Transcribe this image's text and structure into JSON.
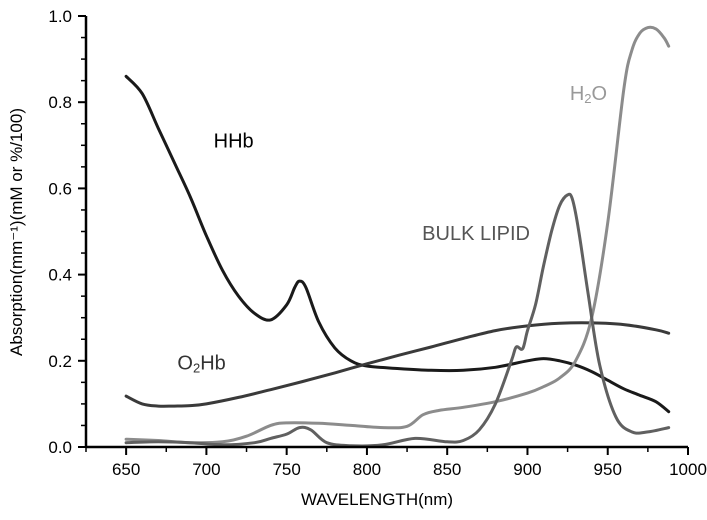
{
  "chart_data": {
    "type": "line",
    "xlabel": "WAVELENGTH(nm)",
    "ylabel": "Absorption(mm⁻¹)(mM or %/100)",
    "xlim": [
      625,
      1000
    ],
    "ylim": [
      0,
      1.0
    ],
    "x_ticks": [
      "650",
      "700",
      "750",
      "800",
      "850",
      "900",
      "950",
      "1000"
    ],
    "y_ticks": [
      "0.0",
      "0.2",
      "0.4",
      "0.6",
      "0.8",
      "1.0"
    ],
    "grid": false,
    "series": [
      {
        "name": "HHb",
        "color": "#1a1a1a",
        "x": [
          650,
          660,
          670,
          680,
          690,
          700,
          710,
          720,
          730,
          740,
          750,
          755,
          758,
          762,
          770,
          780,
          790,
          800,
          820,
          840,
          860,
          880,
          900,
          910,
          920,
          930,
          940,
          950,
          960,
          970,
          980,
          988
        ],
        "y": [
          0.86,
          0.82,
          0.74,
          0.66,
          0.58,
          0.49,
          0.41,
          0.35,
          0.31,
          0.295,
          0.33,
          0.37,
          0.385,
          0.37,
          0.29,
          0.23,
          0.2,
          0.188,
          0.182,
          0.178,
          0.178,
          0.185,
          0.2,
          0.205,
          0.2,
          0.19,
          0.175,
          0.155,
          0.135,
          0.12,
          0.105,
          0.082
        ]
      },
      {
        "name": "O₂Hb",
        "color": "#3a3a3a",
        "x": [
          650,
          660,
          670,
          680,
          690,
          700,
          720,
          740,
          760,
          780,
          800,
          820,
          840,
          860,
          880,
          900,
          920,
          940,
          960,
          980,
          988
        ],
        "y": [
          0.118,
          0.1,
          0.095,
          0.095,
          0.096,
          0.1,
          0.115,
          0.133,
          0.152,
          0.172,
          0.193,
          0.213,
          0.232,
          0.252,
          0.27,
          0.281,
          0.287,
          0.288,
          0.284,
          0.272,
          0.264
        ]
      },
      {
        "name": "H₂O",
        "color": "#8c8c8c",
        "x": [
          650,
          670,
          690,
          710,
          725,
          740,
          750,
          770,
          790,
          810,
          825,
          835,
          845,
          860,
          880,
          900,
          910,
          920,
          930,
          940,
          950,
          960,
          965,
          970,
          975,
          980,
          985,
          988
        ],
        "y": [
          0.018,
          0.015,
          0.01,
          0.012,
          0.025,
          0.05,
          0.056,
          0.055,
          0.05,
          0.045,
          0.048,
          0.075,
          0.085,
          0.092,
          0.105,
          0.125,
          0.14,
          0.16,
          0.2,
          0.3,
          0.52,
          0.83,
          0.92,
          0.96,
          0.973,
          0.97,
          0.95,
          0.93
        ]
      },
      {
        "name": "BULK LIPID",
        "color": "#606060",
        "x": [
          650,
          670,
          690,
          710,
          730,
          740,
          750,
          758,
          765,
          775,
          790,
          810,
          830,
          850,
          860,
          870,
          880,
          890,
          893,
          897,
          900,
          905,
          910,
          915,
          920,
          925,
          928,
          932,
          938,
          945,
          955,
          965,
          975,
          988
        ],
        "y": [
          0.01,
          0.012,
          0.01,
          0.005,
          0.01,
          0.02,
          0.03,
          0.045,
          0.04,
          0.01,
          0.003,
          0.005,
          0.02,
          0.012,
          0.015,
          0.04,
          0.1,
          0.2,
          0.232,
          0.228,
          0.27,
          0.33,
          0.42,
          0.5,
          0.56,
          0.585,
          0.575,
          0.5,
          0.35,
          0.19,
          0.07,
          0.035,
          0.035,
          0.045
        ]
      }
    ],
    "annotations": [
      {
        "text_parts": [
          "HHb"
        ],
        "series": "HHb",
        "color": "#000000",
        "x": 717,
        "y": 0.695
      },
      {
        "text_parts": [
          "O",
          "2",
          "Hb"
        ],
        "series": "O₂Hb",
        "color": "#333333",
        "x": 697,
        "y": 0.18
      },
      {
        "text_parts": [
          "H",
          "2",
          "O"
        ],
        "series": "H₂O",
        "color": "#999999",
        "x": 938,
        "y": 0.805
      },
      {
        "text_parts": [
          "BULK LIPID"
        ],
        "series": "BULK LIPID",
        "color": "#555555",
        "x": 868,
        "y": 0.48
      }
    ]
  }
}
